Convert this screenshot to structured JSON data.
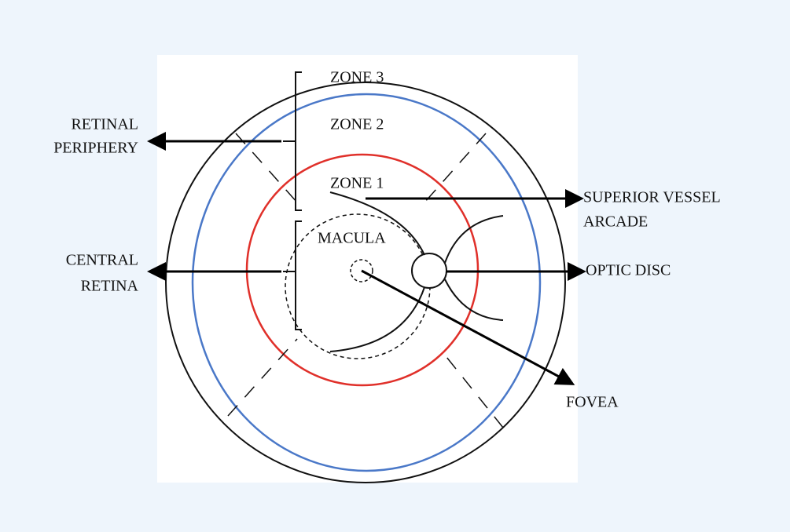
{
  "zones": [
    "ZONE 3",
    "ZONE 2",
    "ZONE 1"
  ],
  "regions": {
    "macula": "MACULA"
  },
  "labels": {
    "retinal_periphery": [
      "RETINAL",
      "PERIPHERY"
    ],
    "central_retina": [
      "CENTRAL",
      "RETINA"
    ],
    "superior_vessel_arcade": [
      "SUPERIOR VESSEL",
      "ARCADE"
    ],
    "optic_disc": [
      "OPTIC DISC"
    ],
    "fovea": [
      "FOVEA"
    ]
  }
}
